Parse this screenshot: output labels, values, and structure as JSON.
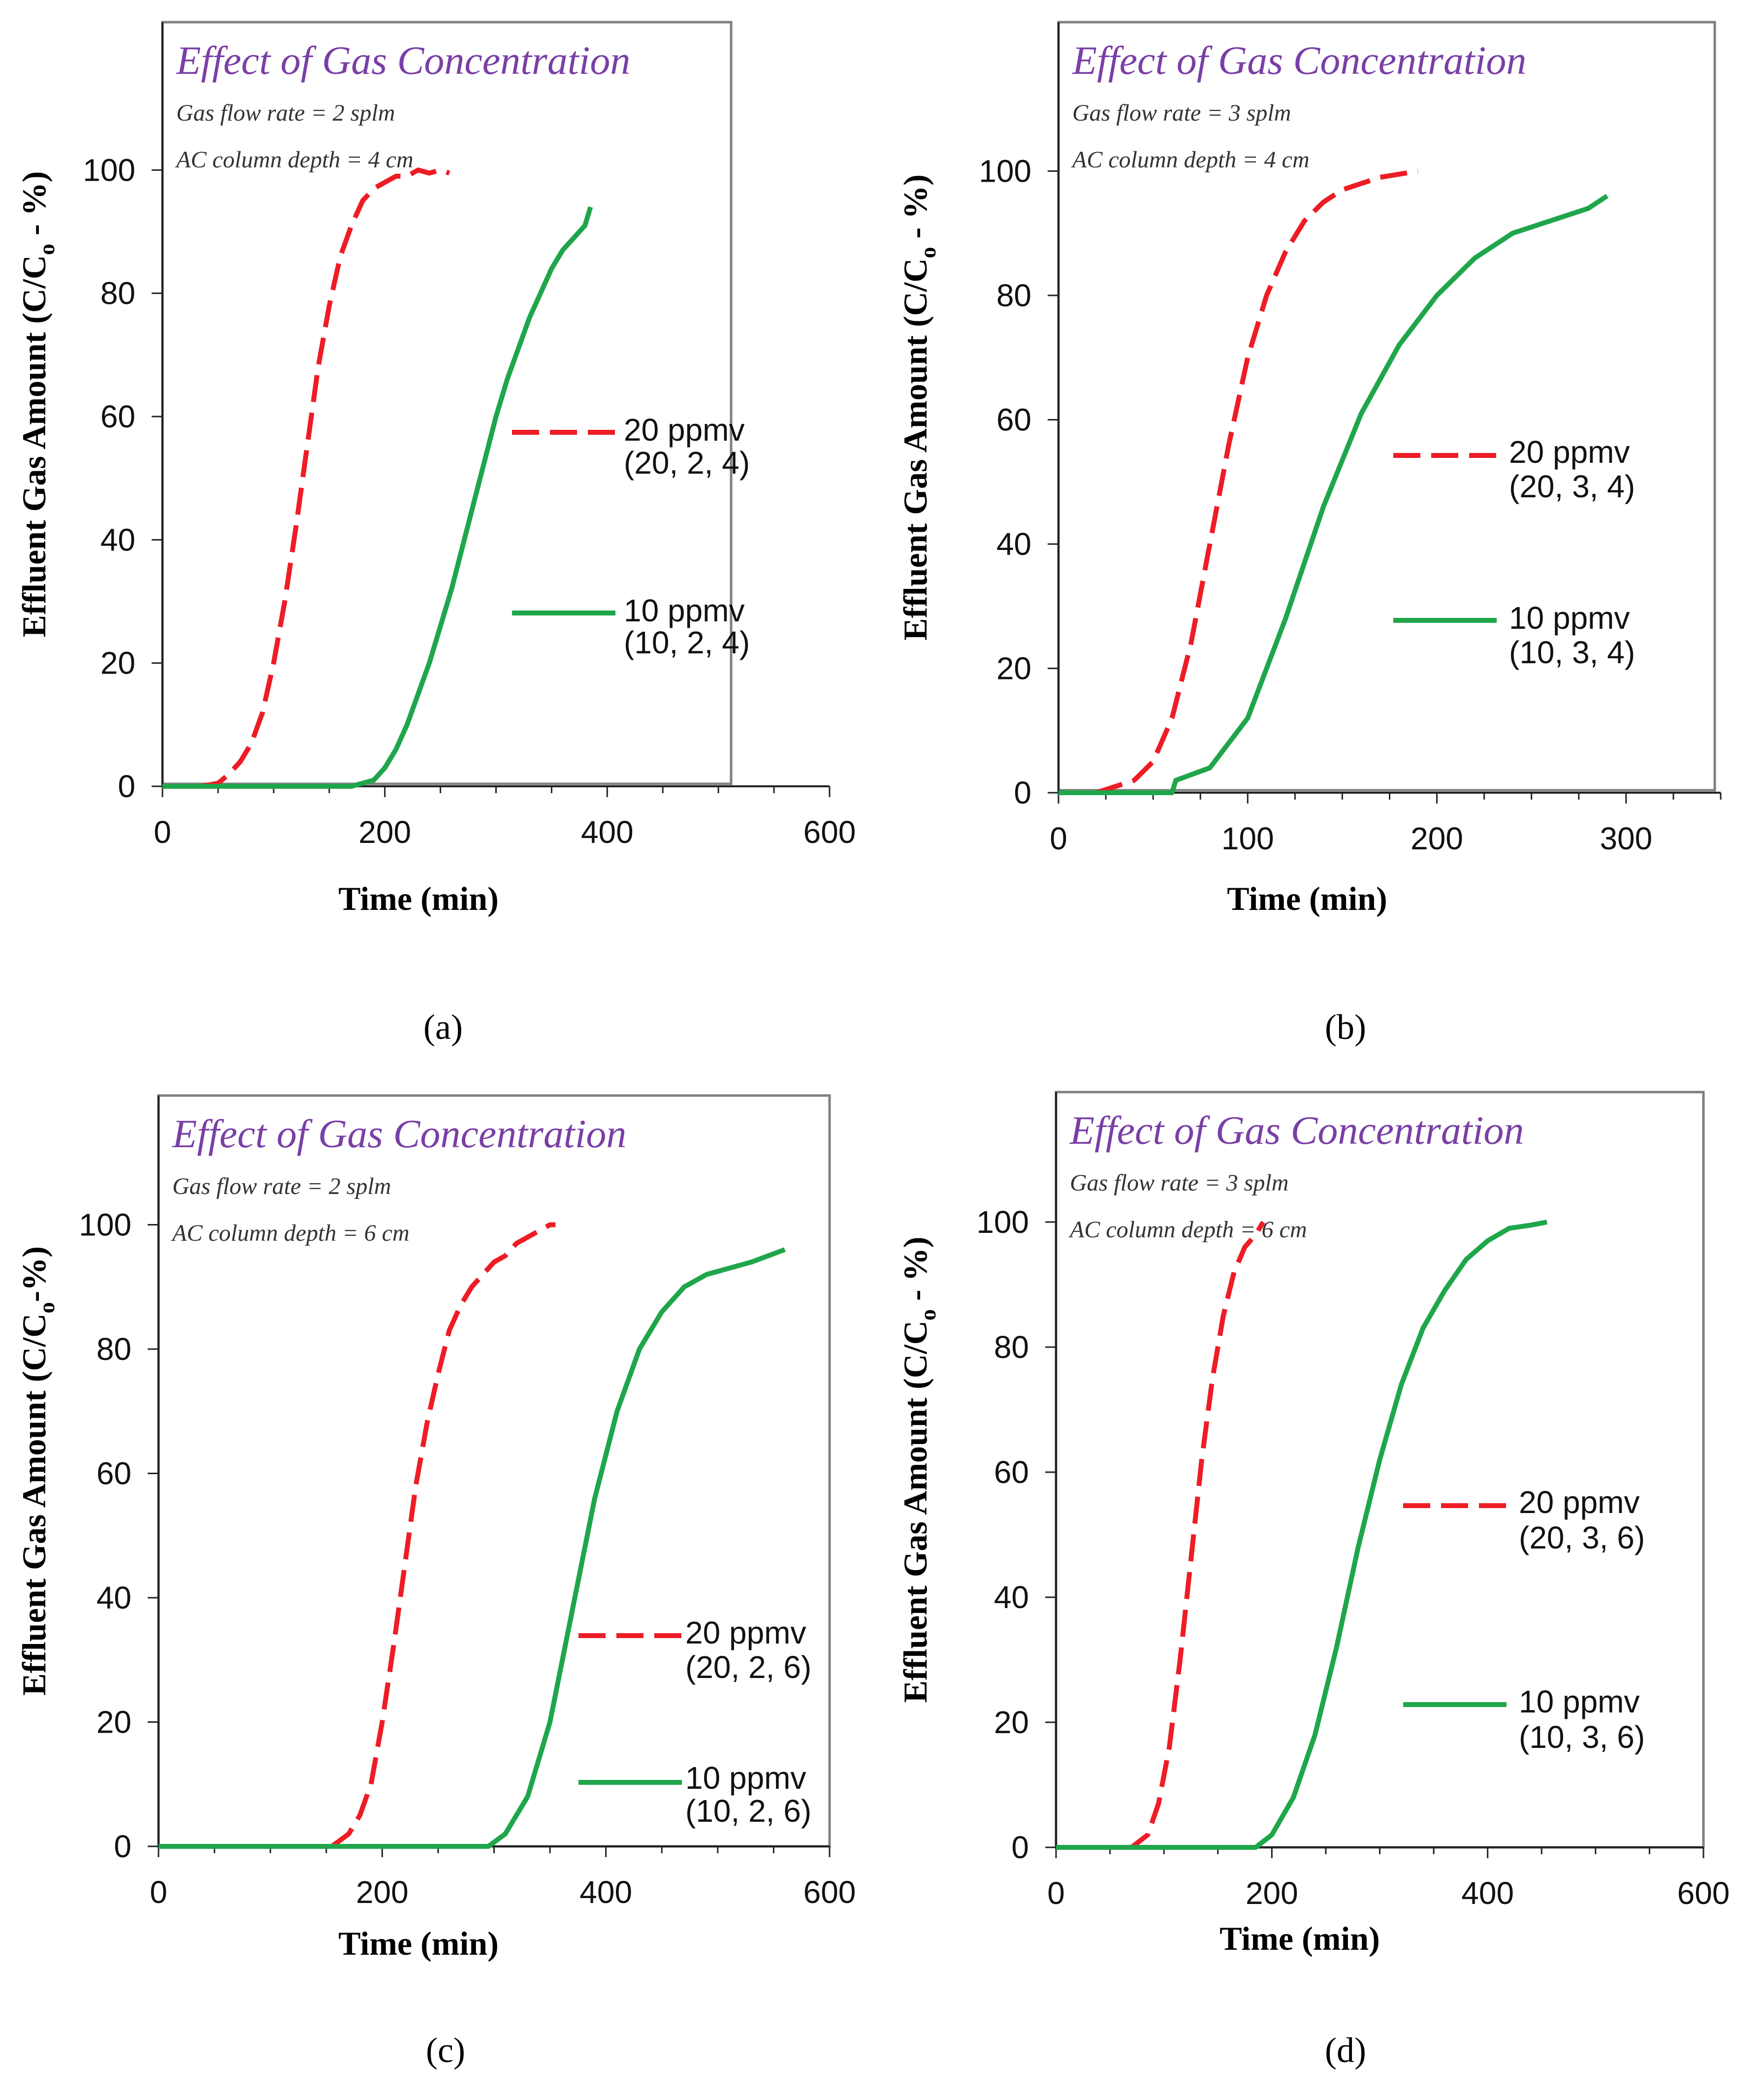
{
  "colors": {
    "red": "#ee1c25",
    "green": "#1fa64a",
    "purple": "#7a3fa6",
    "axis": "#222222",
    "frame": "#808080"
  },
  "chart_data": [
    {
      "type": "line",
      "panel": "(a)",
      "title": "Effect of Gas Concentration",
      "annotations": [
        "Gas flow rate = 2 splm",
        "AC column depth = 4 cm"
      ],
      "xlabel": "Time (min)",
      "ylabel_main": "Effluent Gas Amount (C/C",
      "ylabel_sub": "o",
      "ylabel_tail": " - %)",
      "xlim": [
        0,
        600
      ],
      "ylim": [
        0,
        120
      ],
      "xticks": [
        0,
        200,
        400,
        600
      ],
      "yticks": [
        0,
        20,
        40,
        60,
        80,
        100
      ],
      "series": [
        {
          "name": "20 ppmv",
          "params": "(20, 2, 4)",
          "style": "dashed",
          "x": [
            35,
            50,
            60,
            70,
            80,
            90,
            100,
            110,
            120,
            130,
            140,
            150,
            160,
            170,
            180,
            190,
            200,
            210,
            220,
            230,
            240,
            250,
            258
          ],
          "y": [
            0,
            0.5,
            2,
            4,
            7,
            12,
            20,
            30,
            42,
            55,
            68,
            78,
            86,
            91,
            95,
            97,
            98,
            99,
            99,
            100,
            99.5,
            100,
            99.5
          ]
        },
        {
          "name": "10 ppmv",
          "params": "(10, 2, 4)",
          "style": "solid",
          "x": [
            0,
            170,
            190,
            200,
            210,
            220,
            230,
            240,
            250,
            260,
            270,
            280,
            290,
            300,
            310,
            320,
            330,
            340,
            350,
            360,
            370,
            380,
            385
          ],
          "y": [
            0,
            0,
            1,
            3,
            6,
            10,
            15,
            20,
            26,
            32,
            39,
            46,
            53,
            60,
            66,
            71,
            76,
            80,
            84,
            87,
            89,
            91,
            94
          ]
        }
      ]
    },
    {
      "type": "line",
      "panel": "(b)",
      "title": "Effect of Gas Concentration",
      "annotations": [
        "Gas flow rate = 3 splm",
        "AC column depth = 4 cm"
      ],
      "xlabel": "Time (min)",
      "ylabel_main": "Effluent Gas Amount (C/C",
      "ylabel_sub": "o",
      "ylabel_tail": " - %)",
      "xlim": [
        0,
        350
      ],
      "ylim": [
        0,
        120
      ],
      "xticks": [
        0,
        100,
        200,
        300
      ],
      "yticks": [
        0,
        20,
        40,
        60,
        80,
        100
      ],
      "series": [
        {
          "name": "20 ppmv",
          "params": "(20, 3, 4)",
          "style": "dashed",
          "x": [
            20,
            30,
            40,
            50,
            60,
            70,
            80,
            90,
            100,
            110,
            120,
            130,
            140,
            150,
            160,
            170,
            180,
            190
          ],
          "y": [
            0,
            1,
            2,
            5,
            12,
            24,
            40,
            56,
            70,
            80,
            87,
            92,
            95,
            97,
            98,
            99,
            99.5,
            100
          ]
        },
        {
          "name": "10 ppmv",
          "params": "(10, 3, 4)",
          "style": "solid",
          "x": [
            0,
            60,
            62,
            80,
            100,
            120,
            140,
            160,
            180,
            200,
            220,
            240,
            260,
            280,
            290
          ],
          "y": [
            0,
            0,
            2,
            4,
            12,
            28,
            46,
            61,
            72,
            80,
            86,
            90,
            92,
            94,
            96
          ]
        }
      ]
    },
    {
      "type": "line",
      "panel": "(c)",
      "title": "Effect of Gas Concentration",
      "annotations": [
        "Gas flow rate = 2 splm",
        "AC column depth = 6 cm"
      ],
      "xlabel": "Time (min)",
      "ylabel_main": "Effluent Gas Amount (C/C",
      "ylabel_sub": "o",
      "ylabel_tail": "-%)",
      "xlim": [
        0,
        600
      ],
      "ylim": [
        0,
        120
      ],
      "xticks": [
        0,
        200,
        400,
        600
      ],
      "yticks": [
        0,
        20,
        40,
        60,
        80,
        100
      ],
      "series": [
        {
          "name": "20 ppmv",
          "params": "(20, 2, 6)",
          "style": "dashed",
          "x": [
            155,
            170,
            180,
            190,
            200,
            210,
            220,
            230,
            240,
            250,
            260,
            270,
            280,
            290,
            300,
            310,
            320,
            330,
            340,
            350,
            355
          ],
          "y": [
            0,
            2,
            5,
            10,
            20,
            32,
            45,
            58,
            68,
            76,
            83,
            87,
            90,
            92,
            94,
            95,
            97,
            98,
            99,
            100,
            100
          ]
        },
        {
          "name": "10 ppmv",
          "params": "(10, 2, 6)",
          "style": "solid",
          "x": [
            0,
            295,
            310,
            330,
            350,
            370,
            390,
            410,
            430,
            450,
            470,
            490,
            510,
            530,
            560
          ],
          "y": [
            0,
            0,
            2,
            8,
            20,
            38,
            56,
            70,
            80,
            86,
            90,
            92,
            93,
            94,
            96
          ]
        }
      ]
    },
    {
      "type": "line",
      "panel": "(d)",
      "title": "Effect of Gas Concentration",
      "annotations": [
        "Gas flow rate = 3 splm",
        "AC column depth = 6 cm"
      ],
      "xlabel": "Time (min)",
      "ylabel_main": "Effluent Gas Amount (C/C",
      "ylabel_sub": "o",
      "ylabel_tail": " - %)",
      "xlim": [
        0,
        600
      ],
      "ylim": [
        0,
        120
      ],
      "xticks": [
        0,
        200,
        400,
        600
      ],
      "yticks": [
        0,
        20,
        40,
        60,
        80,
        100
      ],
      "series": [
        {
          "name": "20 ppmv",
          "params": "(20, 3, 6)",
          "style": "dashed",
          "x": [
            30,
            70,
            85,
            95,
            105,
            115,
            125,
            135,
            145,
            155,
            165,
            175,
            185,
            192
          ],
          "y": [
            0,
            0,
            2,
            7,
            16,
            30,
            46,
            62,
            75,
            85,
            92,
            96,
            98,
            100
          ]
        },
        {
          "name": "10 ppmv",
          "params": "(10, 3, 6)",
          "style": "solid",
          "x": [
            0,
            185,
            200,
            220,
            240,
            260,
            280,
            300,
            320,
            340,
            360,
            380,
            400,
            420,
            440,
            455
          ],
          "y": [
            0,
            0,
            2,
            8,
            18,
            32,
            48,
            62,
            74,
            83,
            89,
            94,
            97,
            99,
            99.5,
            100
          ]
        }
      ]
    }
  ],
  "panel_labels": [
    "(a)",
    "(b)",
    "(c)",
    "(d)"
  ]
}
